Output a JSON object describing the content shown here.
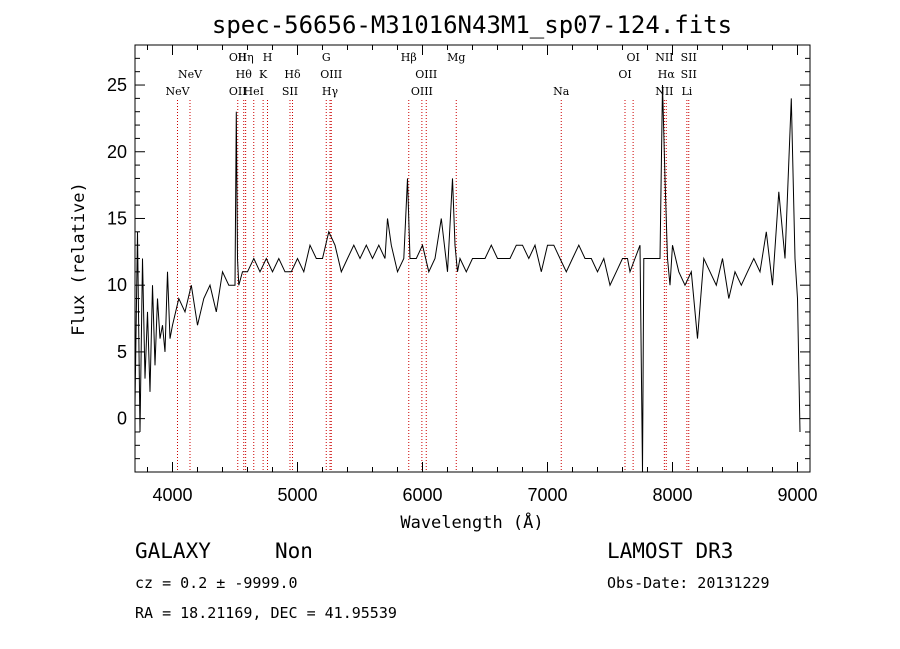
{
  "chart_data": {
    "type": "line",
    "title": "spec-56656-M31016N43M1_sp07-124.fits",
    "xlabel": "Wavelength (Å)",
    "ylabel": "Flux (relative)",
    "xlim": [
      3700,
      9100
    ],
    "ylim": [
      -4,
      28
    ],
    "xticks": [
      4000,
      5000,
      6000,
      7000,
      8000,
      9000
    ],
    "yticks": [
      0,
      5,
      10,
      15,
      20,
      25
    ],
    "grid": false,
    "series": [
      {
        "name": "flux",
        "x": [
          3700,
          3720,
          3740,
          3760,
          3780,
          3800,
          3820,
          3840,
          3860,
          3880,
          3900,
          3920,
          3940,
          3960,
          3980,
          4000,
          4050,
          4100,
          4150,
          4200,
          4250,
          4300,
          4350,
          4400,
          4450,
          4500,
          4510,
          4520,
          4530,
          4560,
          4600,
          4650,
          4700,
          4750,
          4800,
          4850,
          4900,
          4950,
          5000,
          5050,
          5100,
          5150,
          5200,
          5250,
          5300,
          5350,
          5400,
          5450,
          5500,
          5550,
          5600,
          5650,
          5700,
          5720,
          5750,
          5800,
          5850,
          5880,
          5900,
          5950,
          6000,
          6050,
          6100,
          6150,
          6200,
          6240,
          6260,
          6280,
          6300,
          6350,
          6400,
          6450,
          6500,
          6550,
          6600,
          6650,
          6700,
          6750,
          6800,
          6850,
          6900,
          6950,
          7000,
          7050,
          7100,
          7150,
          7200,
          7250,
          7300,
          7350,
          7400,
          7450,
          7500,
          7550,
          7600,
          7640,
          7660,
          7700,
          7740,
          7760,
          7770,
          7800,
          7850,
          7900,
          7920,
          7940,
          7960,
          7980,
          8000,
          8050,
          8100,
          8150,
          8200,
          8250,
          8300,
          8350,
          8400,
          8450,
          8500,
          8550,
          8600,
          8650,
          8700,
          8750,
          8800,
          8850,
          8900,
          8950,
          8980,
          9000,
          9020
        ],
        "values": [
          1,
          14,
          -1,
          12,
          3,
          8,
          2,
          10,
          4,
          9,
          6,
          7,
          5,
          11,
          6,
          7,
          9,
          8,
          10,
          7,
          9,
          10,
          8,
          11,
          10,
          10,
          23,
          12,
          10,
          11,
          11,
          12,
          11,
          12,
          11,
          12,
          11,
          11,
          12,
          11,
          13,
          12,
          12,
          14,
          13,
          11,
          12,
          13,
          12,
          13,
          12,
          13,
          12,
          15,
          13,
          11,
          12,
          18,
          12,
          12,
          13,
          11,
          12,
          15,
          11,
          18,
          13,
          11,
          12,
          11,
          12,
          12,
          12,
          13,
          12,
          12,
          12,
          13,
          13,
          12,
          13,
          11,
          13,
          13,
          12,
          11,
          12,
          13,
          12,
          12,
          11,
          12,
          10,
          11,
          12,
          12,
          11,
          12,
          13,
          -4,
          12,
          12,
          12,
          12,
          25,
          18,
          12,
          10,
          13,
          11,
          10,
          11,
          6,
          12,
          11,
          10,
          12,
          9,
          11,
          10,
          11,
          12,
          11,
          14,
          10,
          17,
          12,
          24,
          12,
          9,
          -1
        ]
      }
    ],
    "lines": [
      {
        "name": "NeV",
        "wl": 4040,
        "row": 3
      },
      {
        "name": "NeV",
        "wl": 4140,
        "row": 2
      },
      {
        "name": "OII",
        "wl": 4522,
        "row": 1
      },
      {
        "name": "OII",
        "wl": 4522,
        "row": 3
      },
      {
        "name": "Hη",
        "wl": 4585,
        "row": 1
      },
      {
        "name": "Hθ",
        "wl": 4570,
        "row": 2
      },
      {
        "name": "HeI",
        "wl": 4650,
        "row": 3
      },
      {
        "name": "H",
        "wl": 4760,
        "row": 1
      },
      {
        "name": "K",
        "wl": 4725,
        "row": 2
      },
      {
        "name": "Hδ",
        "wl": 4960,
        "row": 2
      },
      {
        "name": "SII",
        "wl": 4940,
        "row": 3
      },
      {
        "name": "G",
        "wl": 5230,
        "row": 1
      },
      {
        "name": "OIII",
        "wl": 5270,
        "row": 2
      },
      {
        "name": "Hγ",
        "wl": 5260,
        "row": 3
      },
      {
        "name": "Hβ",
        "wl": 5890,
        "row": 1
      },
      {
        "name": "OIII",
        "wl": 6030,
        "row": 2
      },
      {
        "name": "OIII",
        "wl": 5995,
        "row": 3
      },
      {
        "name": "Mg",
        "wl": 6270,
        "row": 1
      },
      {
        "name": "Na",
        "wl": 7110,
        "row": 3
      },
      {
        "name": "OI",
        "wl": 7685,
        "row": 1
      },
      {
        "name": "OI",
        "wl": 7620,
        "row": 2
      },
      {
        "name": "NII",
        "wl": 7935,
        "row": 1
      },
      {
        "name": "Hα",
        "wl": 7950,
        "row": 2
      },
      {
        "name": "NII",
        "wl": 7935,
        "row": 3
      },
      {
        "name": "SII",
        "wl": 8130,
        "row": 1
      },
      {
        "name": "SII",
        "wl": 8130,
        "row": 2
      },
      {
        "name": "Li",
        "wl": 8115,
        "row": 3
      }
    ]
  },
  "info": {
    "object_class": "GALAXY",
    "subclass": "Non",
    "survey": "LAMOST DR3",
    "cz": "cz = 0.2 ± -9999.0",
    "obs_date": "Obs-Date: 20131229",
    "coords": "RA =  18.21169, DEC =  41.95539"
  },
  "colors": {
    "spectrum": "#000000",
    "line_marker": "#cc0000",
    "background": "#ffffff"
  }
}
